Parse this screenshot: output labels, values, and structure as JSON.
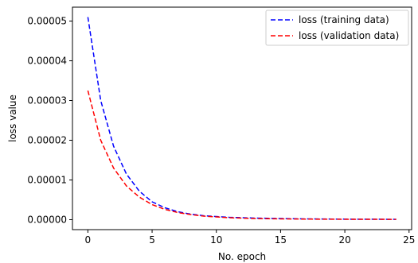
{
  "chart_data": {
    "type": "line",
    "title": "",
    "xlabel": "No. epoch",
    "ylabel": "loss value",
    "xlim": [
      -1.2,
      25.2
    ],
    "ylim": [
      -2.5e-06,
      5.35e-05
    ],
    "x_ticks": [
      0,
      5,
      10,
      15,
      20,
      25
    ],
    "x_tick_labels": [
      "0",
      "5",
      "10",
      "15",
      "20",
      "25"
    ],
    "y_ticks": [
      0,
      1e-05,
      2e-05,
      3e-05,
      4e-05,
      5e-05
    ],
    "y_tick_labels": [
      "0.00000",
      "0.00001",
      "0.00002",
      "0.00003",
      "0.00004",
      "0.00005"
    ],
    "grid": false,
    "legend_position": "top-right",
    "x": [
      0,
      1,
      2,
      3,
      4,
      5,
      6,
      7,
      8,
      9,
      10,
      11,
      12,
      13,
      14,
      15,
      16,
      17,
      18,
      19,
      20,
      21,
      22,
      23,
      24
    ],
    "series": [
      {
        "name": "loss (training data)",
        "color": "#0000ff",
        "line_style": "dashed",
        "values": [
          5.1e-05,
          3e-05,
          1.85e-05,
          1.15e-05,
          7.2e-06,
          4.5e-06,
          3e-06,
          2e-06,
          1.4e-06,
          1e-06,
          8e-07,
          6e-07,
          5e-07,
          4e-07,
          3.5e-07,
          3e-07,
          2.5e-07,
          2e-07,
          1.8e-07,
          1.6e-07,
          1.4e-07,
          1.3e-07,
          1.2e-07,
          1.1e-07,
          1e-07
        ]
      },
      {
        "name": "loss (validation data)",
        "color": "#ff0000",
        "line_style": "dashed",
        "values": [
          3.25e-05,
          2e-05,
          1.3e-05,
          8.5e-06,
          5.7e-06,
          3.8e-06,
          2.6e-06,
          1.8e-06,
          1.3e-06,
          9e-07,
          7e-07,
          5e-07,
          4e-07,
          3e-07,
          2.5e-07,
          2e-07,
          1.8e-07,
          1.5e-07,
          1.3e-07,
          1.2e-07,
          1.1e-07,
          1e-07,
          1e-07,
          9e-08,
          8e-08
        ]
      }
    ]
  }
}
